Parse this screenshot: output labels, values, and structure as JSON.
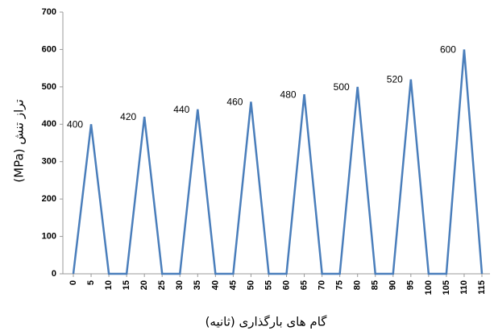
{
  "chart_data": {
    "type": "line",
    "x": [
      0,
      5,
      10,
      15,
      20,
      25,
      30,
      35,
      40,
      45,
      50,
      55,
      60,
      65,
      70,
      75,
      80,
      85,
      90,
      95,
      100,
      105,
      110,
      115
    ],
    "series": [
      {
        "name": "تراز تنش",
        "color": "#4a7ebb",
        "values": [
          0,
          400,
          0,
          0,
          420,
          0,
          0,
          440,
          0,
          0,
          460,
          0,
          0,
          480,
          0,
          0,
          500,
          0,
          0,
          520,
          0,
          0,
          600,
          0
        ]
      }
    ],
    "xlim": [
      0,
      115
    ],
    "xticks": [
      0,
      5,
      10,
      15,
      20,
      25,
      30,
      35,
      40,
      45,
      50,
      55,
      60,
      65,
      70,
      75,
      80,
      85,
      90,
      95,
      100,
      105,
      110,
      115
    ],
    "ylim": [
      0,
      700
    ],
    "yticks": [
      0,
      100,
      200,
      300,
      400,
      500,
      600,
      700
    ],
    "xlabel": "گام های بارگذاری (ثانیه)",
    "ylabel": "تراز تنش (MPa)",
    "grid": false
  }
}
